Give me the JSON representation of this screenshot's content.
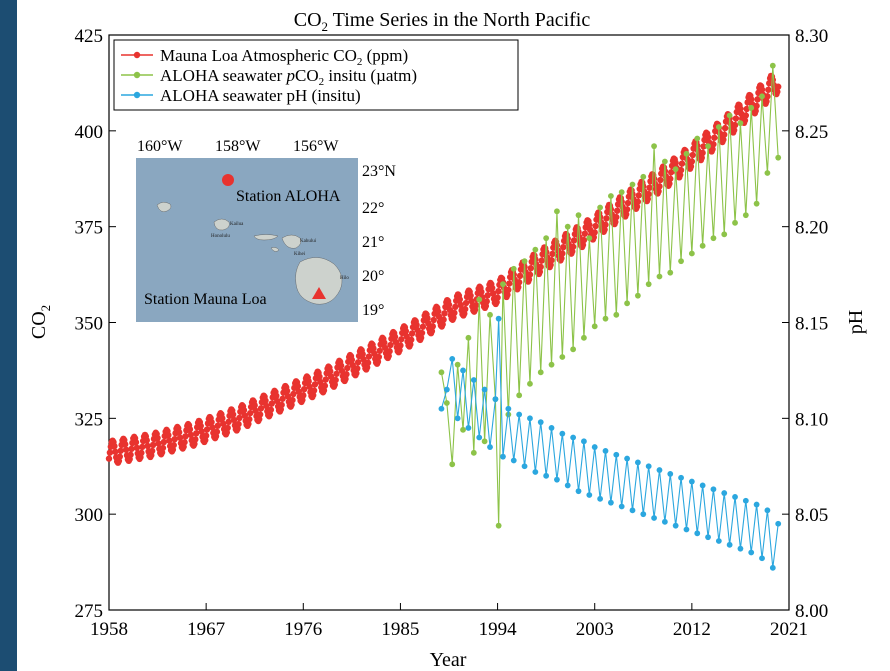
{
  "chart_data": {
    "type": "line",
    "title": "CO2 Time Series in the North Pacific",
    "xlabel": "Year",
    "ylabel_left": "CO2",
    "ylabel_right": "pH",
    "xlim": [
      1958,
      2021
    ],
    "ylim_left": [
      275,
      425
    ],
    "ylim_right": [
      8.0,
      8.3
    ],
    "x_ticks": [
      1958,
      1967,
      1976,
      1985,
      1994,
      2003,
      2012,
      2021
    ],
    "y_ticks_left": [
      275,
      300,
      325,
      350,
      375,
      400,
      425
    ],
    "y_ticks_right": [
      "8.00",
      "8.05",
      "8.10",
      "8.15",
      "8.20",
      "8.25",
      "8.30"
    ],
    "grid": false,
    "legend_position": "top-left",
    "series": [
      {
        "name": "Mauna Loa Atmospheric CO2 (ppm)",
        "color": "#e8332f",
        "axis": "left",
        "seasonal_amplitude": 3,
        "x": [
          1958,
          1962,
          1966,
          1970,
          1974,
          1978,
          1982,
          1986,
          1990,
          1994,
          1998,
          2002,
          2006,
          2010,
          2014,
          2018,
          2020
        ],
        "y": [
          316,
          318,
          321,
          325,
          330,
          335,
          341,
          347,
          354,
          358,
          366,
          373,
          381,
          389,
          398,
          408,
          413
        ]
      },
      {
        "name": "ALOHA seawater pCO2 insitu (µatm)",
        "color": "#8dc349",
        "axis": "left",
        "x": [
          1988.8,
          1989.3,
          1989.8,
          1990.3,
          1990.8,
          1991.3,
          1991.8,
          1992.3,
          1992.8,
          1993.3,
          1993.8,
          1994.1,
          1994.5,
          1995.0,
          1995.5,
          1996.0,
          1996.5,
          1997.0,
          1997.5,
          1998.0,
          1998.5,
          1999.0,
          1999.5,
          2000.0,
          2000.5,
          2001.0,
          2001.5,
          2002.0,
          2002.5,
          2003.0,
          2003.5,
          2004.0,
          2004.5,
          2005.0,
          2005.5,
          2006.0,
          2006.5,
          2007.0,
          2007.5,
          2008.0,
          2008.5,
          2009.0,
          2009.5,
          2010.0,
          2010.5,
          2011.0,
          2011.5,
          2012.0,
          2012.5,
          2013.0,
          2013.5,
          2014.0,
          2014.5,
          2015.0,
          2015.5,
          2016.0,
          2016.5,
          2017.0,
          2017.5,
          2018.0,
          2018.5,
          2019.0,
          2019.5,
          2020.0
        ],
        "y": [
          337,
          329,
          313,
          339,
          322,
          346,
          316,
          356,
          319,
          352,
          330,
          297,
          360,
          326,
          364,
          331,
          366,
          334,
          369,
          337,
          372,
          339,
          379,
          341,
          375,
          343,
          378,
          346,
          372,
          349,
          380,
          351,
          383,
          352,
          384,
          355,
          386,
          357,
          388,
          360,
          396,
          362,
          392,
          363,
          390,
          366,
          394,
          368,
          398,
          370,
          396,
          372,
          401,
          373,
          404,
          376,
          402,
          378,
          406,
          381,
          409,
          389,
          417,
          393
        ]
      },
      {
        "name": "ALOHA seawater pH (insitu)",
        "color": "#2ba7df",
        "axis": "right",
        "x": [
          1988.8,
          1989.3,
          1989.8,
          1990.3,
          1990.8,
          1991.3,
          1991.8,
          1992.3,
          1992.8,
          1993.3,
          1993.8,
          1994.1,
          1994.5,
          1995.0,
          1995.5,
          1996.0,
          1996.5,
          1997.0,
          1997.5,
          1998.0,
          1998.5,
          1999.0,
          1999.5,
          2000.0,
          2000.5,
          2001.0,
          2001.5,
          2002.0,
          2002.5,
          2003.0,
          2003.5,
          2004.0,
          2004.5,
          2005.0,
          2005.5,
          2006.0,
          2006.5,
          2007.0,
          2007.5,
          2008.0,
          2008.5,
          2009.0,
          2009.5,
          2010.0,
          2010.5,
          2011.0,
          2011.5,
          2012.0,
          2012.5,
          2013.0,
          2013.5,
          2014.0,
          2014.5,
          2015.0,
          2015.5,
          2016.0,
          2016.5,
          2017.0,
          2017.5,
          2018.0,
          2018.5,
          2019.0,
          2019.5,
          2020.0
        ],
        "y": [
          8.105,
          8.115,
          8.131,
          8.1,
          8.125,
          8.095,
          8.12,
          8.09,
          8.115,
          8.085,
          8.11,
          8.152,
          8.08,
          8.105,
          8.078,
          8.102,
          8.075,
          8.1,
          8.072,
          8.098,
          8.07,
          8.095,
          8.068,
          8.092,
          8.065,
          8.09,
          8.062,
          8.088,
          8.06,
          8.085,
          8.058,
          8.083,
          8.056,
          8.081,
          8.054,
          8.079,
          8.052,
          8.077,
          8.05,
          8.075,
          8.048,
          8.073,
          8.046,
          8.071,
          8.044,
          8.069,
          8.042,
          8.067,
          8.04,
          8.065,
          8.038,
          8.063,
          8.036,
          8.061,
          8.034,
          8.059,
          8.032,
          8.057,
          8.03,
          8.055,
          8.027,
          8.052,
          8.022,
          8.045
        ]
      }
    ]
  },
  "legend": {
    "items": [
      {
        "prefix": "Mauna Loa Atmospheric CO",
        "sub": "2",
        "suffix": " (ppm)"
      },
      {
        "prefix": "ALOHA seawater ",
        "italic": "p",
        "mid": "CO",
        "sub": "2",
        "suffix": " insitu (µatm)"
      },
      {
        "prefix": "ALOHA seawater pH (insitu)"
      }
    ]
  },
  "title_parts": {
    "prefix": "CO",
    "sub": "2",
    "suffix": " Time Series in the North Pacific"
  },
  "ylabel_parts": {
    "prefix": "CO",
    "sub": "2"
  },
  "inset_map": {
    "longitudes": [
      "160°W",
      "158°W",
      "156°W"
    ],
    "latitudes": [
      "23°N",
      "22°",
      "21°",
      "20°",
      "19°"
    ],
    "station_aloha": "Station ALOHA",
    "station_mauna_loa": "Station Mauna Loa",
    "island_labels": [
      "Honolulu",
      "Kailua",
      "Kahului",
      "Kihei",
      "Hilo"
    ],
    "ocean_color": "#8aa7c0",
    "marker_color": "#e8332f"
  }
}
